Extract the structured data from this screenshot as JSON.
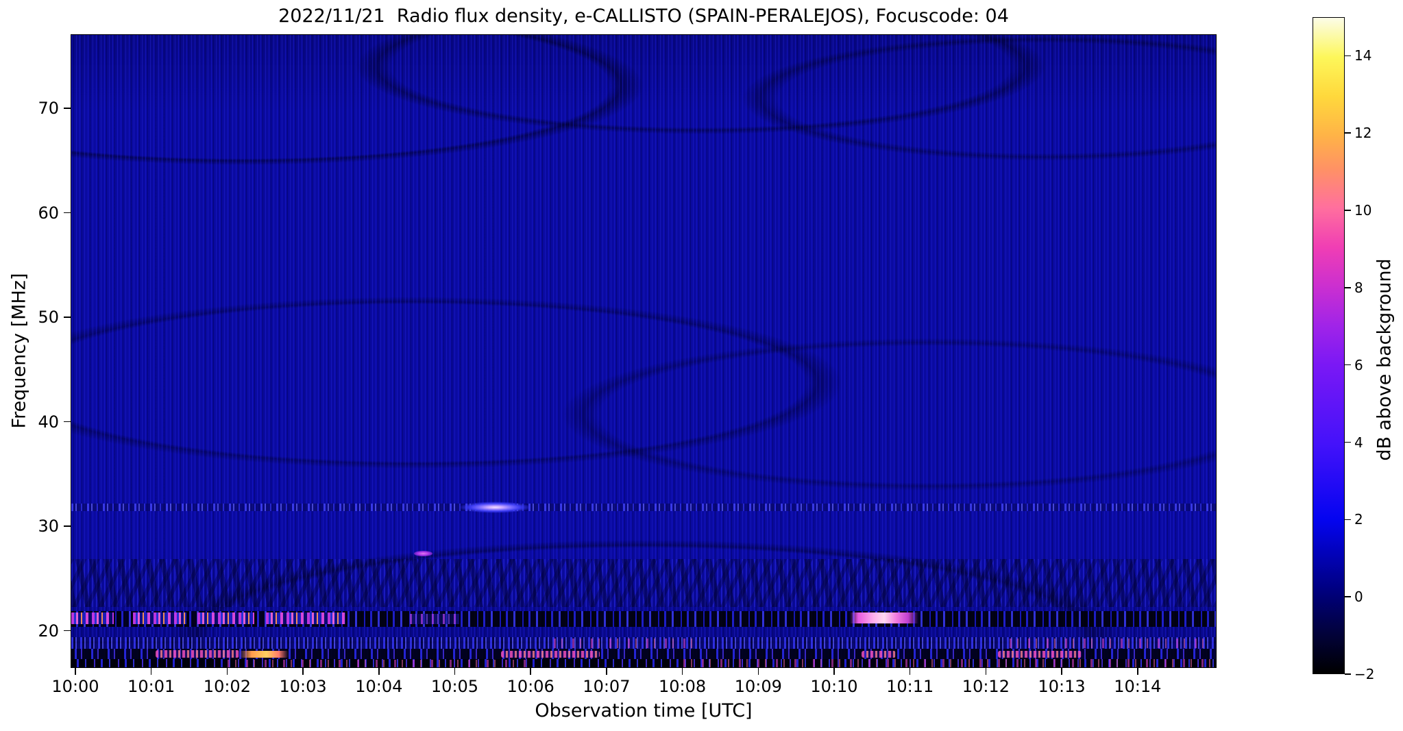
{
  "chart_data": {
    "type": "heatmap",
    "subtype": "radio-spectrogram",
    "title": "2022/11/21  Radio flux density, e-CALLISTO (SPAIN-PERALEJOS), Focuscode: 04",
    "date": "2022/11/21",
    "station": "SPAIN-PERALEJOS",
    "focuscode": "04",
    "xlabel": "Observation time [UTC]",
    "ylabel": "Frequency [MHz]",
    "x_start_time": "10:00",
    "x_end_time": "10:15",
    "x_range_minutes": [
      0,
      15.05
    ],
    "freq_range_mhz": [
      16.4,
      77.1
    ],
    "grid": false,
    "xtick_labels": [
      "10:00",
      "10:01",
      "10:02",
      "10:03",
      "10:04",
      "10:05",
      "10:06",
      "10:07",
      "10:08",
      "10:09",
      "10:10",
      "10:11",
      "10:12",
      "10:13",
      "10:14"
    ],
    "ytick_values": [
      70,
      60,
      50,
      40,
      30,
      20
    ],
    "ytick_labels": [
      "70",
      "60",
      "50",
      "40",
      "30",
      "20"
    ],
    "background_color": "#0a0aa0",
    "colorbar": {
      "label": "dB above background",
      "min": -2,
      "max": 15,
      "tick_values": [
        14,
        12,
        10,
        8,
        6,
        4,
        2,
        0,
        -2
      ],
      "tick_labels": [
        "14",
        "12",
        "10",
        "8",
        "6",
        "4",
        "2",
        "0",
        "−2"
      ],
      "gradient_stops": [
        {
          "pos": 0,
          "color": "#000000"
        },
        {
          "pos": 6,
          "color": "#02023a"
        },
        {
          "pos": 12,
          "color": "#000078"
        },
        {
          "pos": 23.5,
          "color": "#0404f0"
        },
        {
          "pos": 35,
          "color": "#4412fa"
        },
        {
          "pos": 47,
          "color": "#7a18f5"
        },
        {
          "pos": 53,
          "color": "#a024e8"
        },
        {
          "pos": 59,
          "color": "#cb2fd0"
        },
        {
          "pos": 65,
          "color": "#f03eb4"
        },
        {
          "pos": 71,
          "color": "#ff6f9e"
        },
        {
          "pos": 77,
          "color": "#ff9264"
        },
        {
          "pos": 82,
          "color": "#ffb347"
        },
        {
          "pos": 88,
          "color": "#ffd83c"
        },
        {
          "pos": 94,
          "color": "#fdf75a"
        },
        {
          "pos": 100,
          "color": "#fcfce8"
        }
      ]
    },
    "features": [
      {
        "kind": "mottle",
        "name": "moire-speckle-region",
        "t0": -0.06,
        "t1": 15.1,
        "f0": 22.3,
        "f1": 26.9
      },
      {
        "kind": "line32",
        "name": "rfi-line-32mhz",
        "t0": -0.06,
        "t1": 15.1,
        "f0": 31.5,
        "f1": 32.25
      },
      {
        "kind": "bright32",
        "name": "bright-patch-32mhz",
        "t0": 5.05,
        "t1": 6.0,
        "f0": 31.3,
        "f1": 32.4
      },
      {
        "kind": "dot",
        "name": "point-burst-27mhz",
        "t0": 4.45,
        "t1": 4.7,
        "f0": 27.15,
        "f1": 27.7
      },
      {
        "kind": "band21",
        "name": "rfi-band-21mhz",
        "t0": -0.06,
        "t1": 15.1,
        "f0": 20.45,
        "f1": 21.95
      },
      {
        "kind": "bright21",
        "name": "rfi-burst-21mhz-a",
        "t0": -0.06,
        "t1": 0.5,
        "f0": 20.7,
        "f1": 21.8
      },
      {
        "kind": "bright21",
        "name": "rfi-burst-21mhz-b",
        "t0": 0.75,
        "t1": 1.45,
        "f0": 20.7,
        "f1": 21.8
      },
      {
        "kind": "bright21",
        "name": "rfi-burst-21mhz-c",
        "t0": 1.6,
        "t1": 2.35,
        "f0": 20.7,
        "f1": 21.8
      },
      {
        "kind": "bright21",
        "name": "rfi-burst-21mhz-d",
        "t0": 2.5,
        "t1": 3.55,
        "f0": 20.7,
        "f1": 21.8
      },
      {
        "kind": "violet21",
        "name": "rfi-burst-21mhz-faint",
        "t0": 4.4,
        "t1": 5.05,
        "f0": 20.7,
        "f1": 21.7
      },
      {
        "kind": "bright21p",
        "name": "rfi-burst-21mhz-e",
        "t0": 10.2,
        "t1": 11.1,
        "f0": 20.75,
        "f1": 21.8
      },
      {
        "kind": "rows18",
        "name": "rfi-rows-18-19mhz",
        "t0": -0.06,
        "t1": 15.1,
        "f0": 18.3,
        "f1": 19.45
      },
      {
        "kind": "pinkspeck",
        "name": "pink-speckles-19mhz-a",
        "t0": 6.3,
        "t1": 8.2,
        "f0": 18.4,
        "f1": 19.3
      },
      {
        "kind": "pinkspeck",
        "name": "pink-speckles-19mhz-b",
        "t0": 12.3,
        "t1": 14.9,
        "f0": 18.4,
        "f1": 19.3
      },
      {
        "kind": "row17",
        "name": "rfi-row-17-18mhz",
        "t0": -0.06,
        "t1": 15.1,
        "f0": 17.35,
        "f1": 18.3
      },
      {
        "kind": "pinkstrip",
        "name": "pink-strip-17mhz-a",
        "t0": 1.05,
        "t1": 2.15,
        "f0": 17.45,
        "f1": 18.2
      },
      {
        "kind": "orangestrip",
        "name": "orange-strip-17mhz",
        "t0": 2.15,
        "t1": 2.8,
        "f0": 17.45,
        "f1": 18.15
      },
      {
        "kind": "pinkstrip",
        "name": "pink-strip-17mhz-b",
        "t0": 5.6,
        "t1": 6.9,
        "f0": 17.45,
        "f1": 18.15
      },
      {
        "kind": "pinkstrip",
        "name": "pink-strip-17mhz-c",
        "t0": 10.35,
        "t1": 10.8,
        "f0": 17.45,
        "f1": 18.1
      },
      {
        "kind": "pinkstrip",
        "name": "pink-strip-17mhz-d",
        "t0": 12.15,
        "t1": 13.25,
        "f0": 17.45,
        "f1": 18.1
      },
      {
        "kind": "bottom",
        "name": "bottom-dark-band-16-17mhz",
        "t0": -0.06,
        "t1": 15.1,
        "f0": 16.35,
        "f1": 17.35
      },
      {
        "kind": "pinkspeck",
        "name": "pink-speckles-bottom-a",
        "t0": 2.0,
        "t1": 6.0,
        "f0": 16.5,
        "f1": 17.3
      },
      {
        "kind": "pinkspeck",
        "name": "pink-speckles-bottom-b",
        "t0": 8.0,
        "t1": 15.05,
        "f0": 16.5,
        "f1": 17.35
      }
    ]
  }
}
